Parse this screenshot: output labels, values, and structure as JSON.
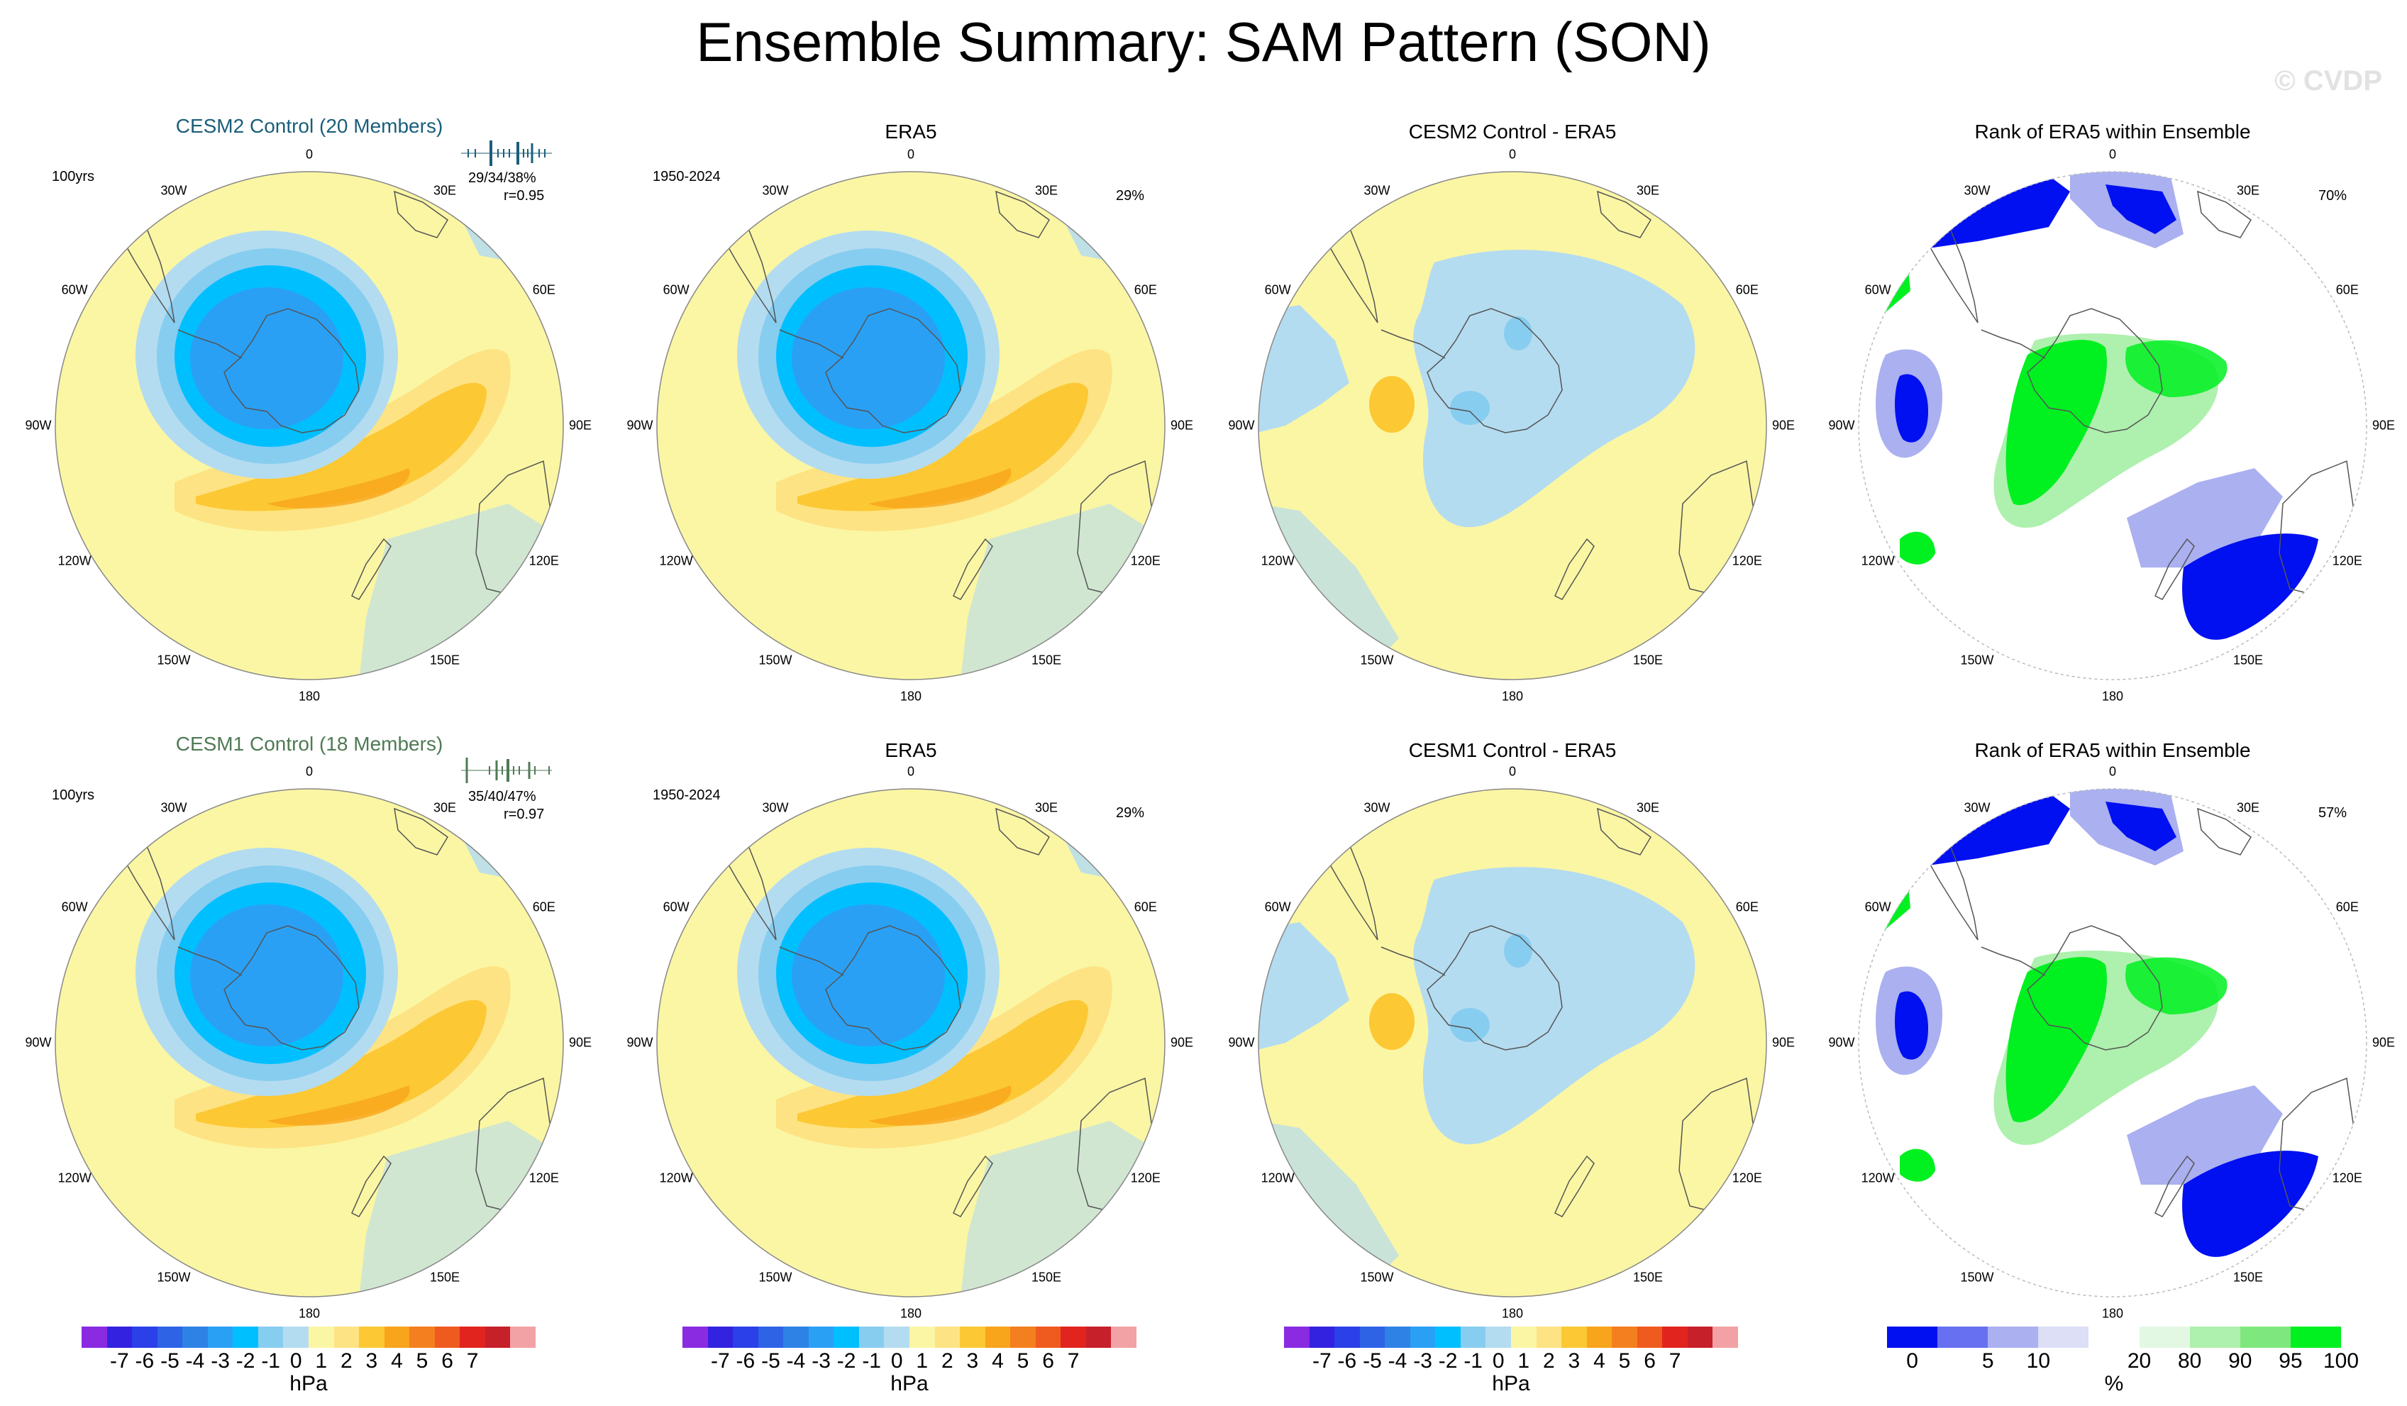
{
  "title": "Ensemble Summary: SAM Pattern (SON)",
  "watermark": "© CVDP",
  "colors": {
    "cesm2": "#1a5e7a",
    "cesm1": "#4f7a55",
    "ocean": "#b4dcf0",
    "land": "#fbf6a4",
    "neg1": "#b4dcf0",
    "neg2": "#87cdf0",
    "neg3": "#00bfff",
    "neg4": "#2aa0f5",
    "neg5": "#2e82e6",
    "pos1": "#fde383",
    "pos2": "#fcc834",
    "pos3": "#f8a51c",
    "rank_low": "#0010f0",
    "rank_mid": "#aab0f0",
    "rank_high": "#00f020"
  },
  "rows": [
    {
      "model_label": "CESM2 Control (20 Members)",
      "model_years": "100yrs",
      "model_stats": "29/34/38%",
      "model_r": "r=0.95",
      "era_title": "ERA5",
      "era_years": "1950-2024",
      "era_pct": "29%",
      "diff_title": "CESM2 Control - ERA5",
      "rank_title": "Rank of ERA5 within Ensemble",
      "rank_pct": "70%"
    },
    {
      "model_label": "CESM1 Control (18 Members)",
      "model_years": "100yrs",
      "model_stats": "35/40/47%",
      "model_r": "r=0.97",
      "era_title": "ERA5",
      "era_years": "1950-2024",
      "era_pct": "29%",
      "diff_title": "CESM1 Control - ERA5",
      "rank_title": "Rank of ERA5 within Ensemble",
      "rank_pct": "57%"
    }
  ],
  "lon_labels": [
    "0",
    "30E",
    "60E",
    "90E",
    "120E",
    "150E",
    "180",
    "150W",
    "120W",
    "90W",
    "60W",
    "30W"
  ],
  "chart_data": [
    {
      "type": "heatmap",
      "name": "SAM pattern map panels (polar stereographic, Southern Hemisphere)",
      "panels": [
        "CESM2 Control (20 Members)",
        "ERA5",
        "CESM2 Control - ERA5",
        "Rank of ERA5 within Ensemble",
        "CESM1 Control (18 Members)",
        "ERA5",
        "CESM1 Control - ERA5",
        "Rank of ERA5 within Ensemble"
      ],
      "units": "hPa"
    },
    {
      "type": "colorbar",
      "name": "hPa colorbar",
      "label": "hPa",
      "tick_labels": [
        "-7",
        "-6",
        "-5",
        "-4",
        "-3",
        "-2",
        "-1",
        "0",
        "1",
        "2",
        "3",
        "4",
        "5",
        "6",
        "7"
      ],
      "colors": [
        "#8a2be2",
        "#3322e0",
        "#2b40e8",
        "#2e63e6",
        "#2e82e6",
        "#2aa0f5",
        "#00bfff",
        "#87cdf0",
        "#b4dcf0",
        "#fbf6a4",
        "#fde383",
        "#fcc834",
        "#f8a51c",
        "#f47f1e",
        "#ef5a1e",
        "#e2241f",
        "#c6202a",
        "#f2a1a5"
      ]
    },
    {
      "type": "colorbar",
      "name": "rank colorbar",
      "label": "%",
      "tick_labels": [
        "0",
        "5",
        "10",
        "20",
        "80",
        "90",
        "95",
        "100"
      ],
      "colors": [
        "#0010f0",
        "#6670f0",
        "#aab0f0",
        "#dcdff5",
        "#ffffff",
        "#e3f8e3",
        "#aef0ae",
        "#7ee87e",
        "#00f020"
      ]
    }
  ]
}
